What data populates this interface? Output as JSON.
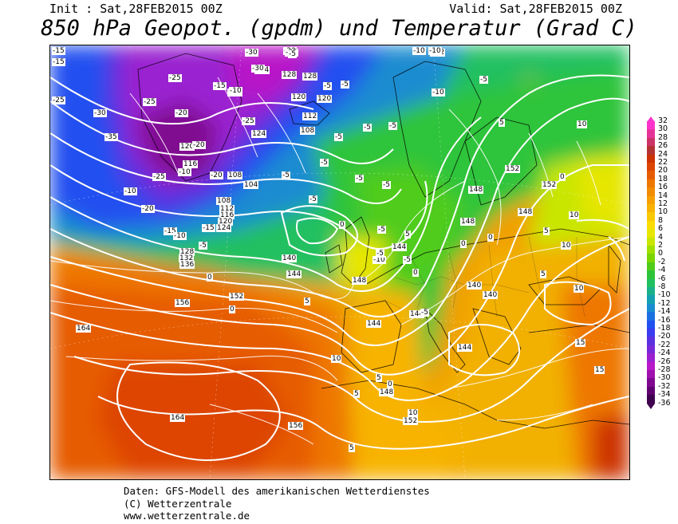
{
  "header": {
    "init": "Init : Sat,28FEB2015 00Z",
    "valid": "Valid: Sat,28FEB2015 00Z",
    "title": "850 hPa Geopot. (gpdm) und Temperatur (Grad C)"
  },
  "footer": {
    "line1": "Daten: GFS-Modell des amerikanischen Wetterdienstes",
    "line2": "(C) Wetterzentrale",
    "line3": "www.wetterzentrale.de"
  },
  "legend": {
    "levels": [
      "32",
      "30",
      "28",
      "26",
      "24",
      "22",
      "20",
      "18",
      "16",
      "14",
      "12",
      "10",
      "8",
      "6",
      "4",
      "2",
      "0",
      "-2",
      "-4",
      "-6",
      "-8",
      "-10",
      "-12",
      "-14",
      "-16",
      "-18",
      "-20",
      "-22",
      "-24",
      "-26",
      "-28",
      "-30",
      "-32",
      "-34",
      "-36"
    ],
    "colors": [
      "#ff33cc",
      "#e63399",
      "#cc3366",
      "#b33333",
      "#cc3300",
      "#dd4400",
      "#e65c00",
      "#ee7700",
      "#f28c00",
      "#f5a000",
      "#f7b300",
      "#f9c800",
      "#fbdc00",
      "#e6e600",
      "#c8e600",
      "#a0e000",
      "#7ad600",
      "#4fcc1a",
      "#2ec43a",
      "#20c060",
      "#1ab08a",
      "#14a0b0",
      "#1a8cd0",
      "#1a70e0",
      "#2050f0",
      "#3a3cf0",
      "#5a30e0",
      "#7828d8",
      "#9a20d0",
      "#b818c8",
      "#a010b0",
      "#800890",
      "#600070",
      "#400050"
    ]
  },
  "geopotential_labels": [
    "116",
    "120",
    "124",
    "128",
    "120",
    "128",
    "120",
    "112",
    "108",
    "124",
    "120",
    "116",
    "108",
    "104",
    "108",
    "112",
    "116",
    "120",
    "124",
    "128",
    "132",
    "136",
    "140",
    "144",
    "148",
    "152",
    "156",
    "164",
    "164",
    "156",
    "152",
    "148",
    "144",
    "144",
    "140",
    "144",
    "148",
    "152",
    "152",
    "148",
    "144",
    "148",
    "152",
    "148",
    "140"
  ],
  "temperature_labels": [
    "-15",
    "-15",
    "-25",
    "-30",
    "-35",
    "-25",
    "-20",
    "-15",
    "-10",
    "-30",
    "-30",
    "-30",
    "-25",
    "-25",
    "-25",
    "-20",
    "-20",
    "-15",
    "-10",
    "-10",
    "-5",
    "-5",
    "-5",
    "-5",
    "-5",
    "0",
    "0",
    "5",
    "5",
    "10",
    "10",
    "5",
    "5",
    "0",
    "0",
    "-5",
    "-10",
    "-10",
    "-10",
    "-5",
    "-5",
    "0",
    "0",
    "5",
    "5",
    "10",
    "10",
    "15",
    "15",
    "10",
    "-5",
    "5",
    "0",
    "10",
    "-20",
    "-25",
    "-15",
    "-10",
    "-5",
    "-5",
    "-5",
    "-5",
    "-5",
    "-5",
    "-5",
    "5",
    "-5",
    "-10",
    "0"
  ]
}
